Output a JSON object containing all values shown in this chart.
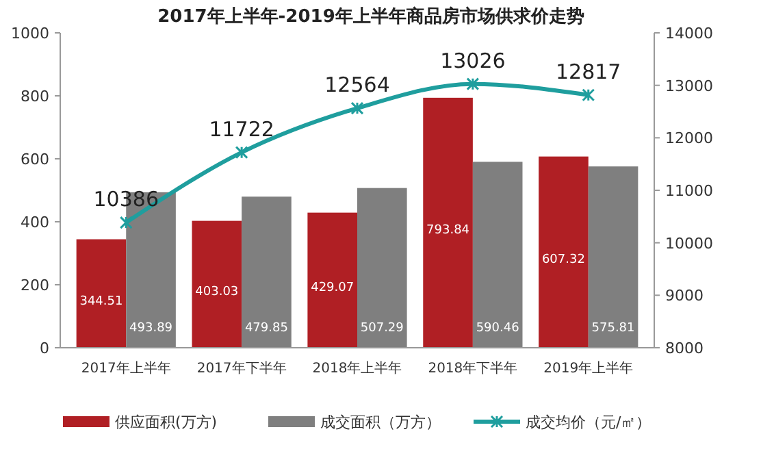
{
  "chart_data": {
    "type": "bar",
    "title": "2017年上半年-2019年上半年商品房市场供求价走势",
    "categories": [
      "2017年上半年",
      "2017年下半年",
      "2018年上半年",
      "2018年下半年",
      "2019年上半年"
    ],
    "series": [
      {
        "name": "供应面积(万方)",
        "color": "#b01f24",
        "values": [
          344.51,
          403.03,
          429.07,
          793.84,
          607.32
        ]
      },
      {
        "name": "成交面积（万方）",
        "color": "#7f7f7f",
        "values": [
          493.89,
          479.85,
          507.29,
          590.46,
          575.81
        ]
      },
      {
        "name": "成交均价（元/㎡）",
        "type": "line",
        "axis": "y2",
        "color": "#1f9e9e",
        "marker": "cross",
        "values": [
          10386,
          11722,
          12564,
          13026,
          12817
        ]
      }
    ],
    "ylim": [
      0,
      1000
    ],
    "yticks": [
      0,
      200,
      400,
      600,
      800,
      1000
    ],
    "y2lim": [
      8000,
      14000
    ],
    "y2ticks": [
      8000,
      9000,
      10000,
      11000,
      12000,
      13000,
      14000
    ],
    "data_labels": true,
    "grid": false,
    "legend": "bottom"
  }
}
